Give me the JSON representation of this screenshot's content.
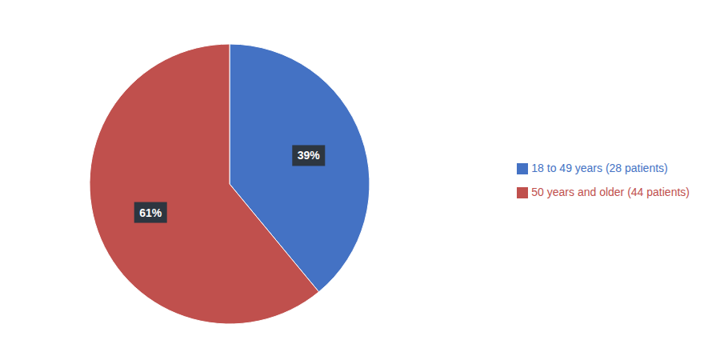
{
  "chart_data": {
    "type": "pie",
    "categories": [
      "18 to 49 years (28 patients)",
      "50 years and older (44 patients)"
    ],
    "values": [
      39,
      61
    ],
    "value_labels": [
      "39%",
      "61%"
    ],
    "colors": [
      "#4472C4",
      "#C0504D"
    ],
    "data_labels": true,
    "legend": "right"
  }
}
